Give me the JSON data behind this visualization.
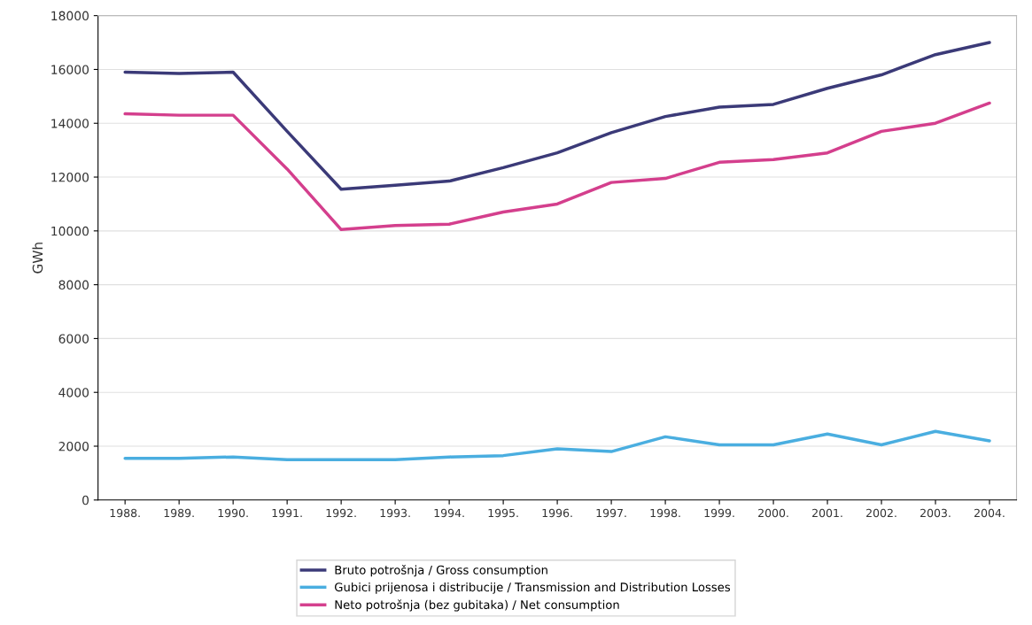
{
  "chart_data": {
    "type": "line",
    "ylabel": "GWh",
    "categories": [
      "1988.",
      "1989.",
      "1990.",
      "1991.",
      "1992.",
      "1993.",
      "1994.",
      "1995.",
      "1996.",
      "1997.",
      "1998.",
      "1999.",
      "2000.",
      "2001.",
      "2002.",
      "2003.",
      "2004."
    ],
    "series": [
      {
        "name": "Bruto potrošnja / Gross consumption",
        "color": "#3b3a78",
        "values": [
          15900,
          15850,
          15900,
          13700,
          11550,
          11700,
          11850,
          12350,
          12900,
          13650,
          14250,
          14600,
          14700,
          15300,
          15800,
          16550,
          17000
        ]
      },
      {
        "name": "Gubici prijenosa i distribucije / Transmission and Distribution Losses",
        "color": "#4aaee0",
        "values": [
          1550,
          1550,
          1600,
          1500,
          1500,
          1500,
          1600,
          1650,
          1900,
          1800,
          2350,
          2050,
          2050,
          2450,
          2050,
          2550,
          2200
        ]
      },
      {
        "name": "Neto potrošnja (bez gubitaka) / Net consumption",
        "color": "#d43f8d",
        "values": [
          14350,
          14300,
          14300,
          12300,
          10050,
          10200,
          10250,
          10700,
          11000,
          11800,
          11950,
          12550,
          12650,
          12900,
          13700,
          14000,
          14750
        ]
      }
    ],
    "ylim": [
      0,
      18000
    ],
    "yticks": [
      0,
      2000,
      4000,
      6000,
      8000,
      10000,
      12000,
      14000,
      16000,
      18000
    ],
    "grid": "y",
    "legend": "bottom",
    "marker": "none",
    "line_style": "solid"
  }
}
